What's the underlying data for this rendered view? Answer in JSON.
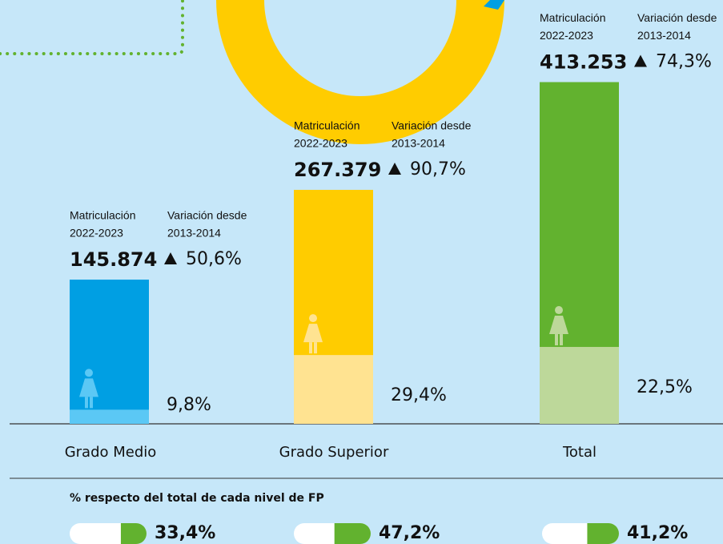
{
  "chart_data": {
    "type": "bar",
    "categories": [
      "Grado Medio",
      "Grado Superior",
      "Total"
    ],
    "enrollment_label": "Matriculación",
    "enrollment_period": "2022-2023",
    "variation_label": "Variación desde",
    "variation_period": "2013-2014",
    "values": [
      145874,
      267379,
      413253
    ],
    "value_labels": [
      "145.874",
      "267.379",
      "413.253"
    ],
    "variation": [
      50.6,
      90.7,
      74.3
    ],
    "variation_labels": [
      "50,6%",
      "90,7%",
      "74,3%"
    ],
    "women_share": [
      9.8,
      29.4,
      22.5
    ],
    "women_share_labels": [
      "9,8%",
      "29,4%",
      "22,5%"
    ],
    "colors": [
      "#009fe3",
      "#ffcc00",
      "#62b22f"
    ],
    "women_colors": [
      "#5bc8f5",
      "#ffe391",
      "#bdd89a"
    ],
    "share_note": "% respecto del total de cada nivel de FP",
    "share": [
      33.4,
      47.2,
      41.2
    ],
    "share_labels": [
      "33,4%",
      "47,2%",
      "41,2%"
    ],
    "share_color": "#62b22f"
  }
}
